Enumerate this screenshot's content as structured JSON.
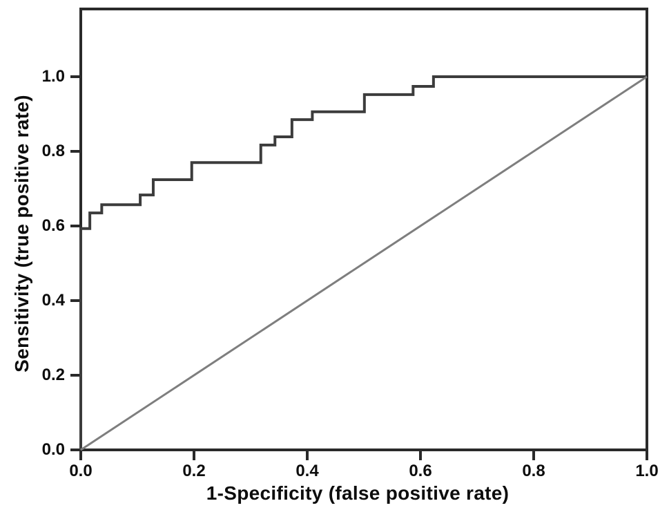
{
  "chart_data": {
    "type": "line",
    "subtype": "roc-curve",
    "title": "",
    "xlabel": "1-Specificity (false positive rate)",
    "ylabel": "Sensitivity (true positive rate)",
    "xlim": [
      0.0,
      1.0
    ],
    "ylim": [
      0.0,
      1.18
    ],
    "x_ticks": [
      0.0,
      0.2,
      0.4,
      0.6,
      0.8,
      1.0
    ],
    "y_ticks": [
      0.0,
      0.2,
      0.4,
      0.6,
      0.8,
      1.0
    ],
    "tick_decimals": 1,
    "grid": false,
    "legend_position": "none",
    "series": [
      {
        "name": "ROC curve",
        "style": "step",
        "color": "#3c3c3c",
        "line_width": 4,
        "points": [
          [
            0.0,
            0.0
          ],
          [
            0.0,
            0.593
          ],
          [
            0.016,
            0.593
          ],
          [
            0.016,
            0.635
          ],
          [
            0.037,
            0.635
          ],
          [
            0.037,
            0.657
          ],
          [
            0.105,
            0.657
          ],
          [
            0.105,
            0.683
          ],
          [
            0.128,
            0.683
          ],
          [
            0.128,
            0.724
          ],
          [
            0.196,
            0.724
          ],
          [
            0.196,
            0.77
          ],
          [
            0.318,
            0.77
          ],
          [
            0.318,
            0.817
          ],
          [
            0.343,
            0.817
          ],
          [
            0.343,
            0.839
          ],
          [
            0.373,
            0.839
          ],
          [
            0.373,
            0.885
          ],
          [
            0.409,
            0.885
          ],
          [
            0.409,
            0.906
          ],
          [
            0.501,
            0.906
          ],
          [
            0.501,
            0.952
          ],
          [
            0.587,
            0.952
          ],
          [
            0.587,
            0.974
          ],
          [
            0.623,
            0.974
          ],
          [
            0.623,
            1.0
          ],
          [
            1.0,
            1.0
          ]
        ]
      },
      {
        "name": "Chance diagonal",
        "style": "straight",
        "color": "#7e7e7e",
        "line_width": 3,
        "points": [
          [
            0.0,
            0.0
          ],
          [
            1.0,
            1.0
          ]
        ]
      }
    ]
  },
  "colors": {
    "background": "#ffffff",
    "axis": "#2a2a2a",
    "text": "#0d0d0d"
  }
}
